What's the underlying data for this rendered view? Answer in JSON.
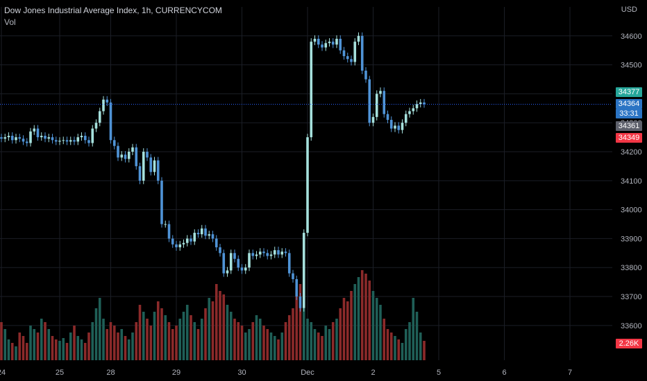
{
  "header": {
    "symbol_title": "Dow Jones Industrial Average Index, 1h, CURRENCYCOM",
    "volume_label": "Vol"
  },
  "axis": {
    "currency_label": "USD"
  },
  "price_labels": {
    "high_label": "34377",
    "last_label": "34364",
    "countdown_label": "33:31",
    "prev_close_label": "34361",
    "low_label": "34349",
    "volume_label": "2.26K"
  },
  "colors": {
    "background": "#000000",
    "up": "#a5e0dc",
    "down": "#4f93d6",
    "vol_up": "#1f5f57",
    "vol_down": "#8b2a2a",
    "grid": "#1b1e26",
    "dotline": "#2962ff"
  },
  "chart_data": {
    "type": "candlestick",
    "title": "Dow Jones Industrial Average Index, 1h, CURRENCYCOM",
    "ylabel": "USD",
    "ylim": [
      33480,
      34700
    ],
    "y_ticks": [
      34600,
      34500,
      34400,
      34300,
      34200,
      34100,
      34000,
      33900,
      33800,
      33700,
      33600
    ],
    "x_ticks": [
      "24",
      "25",
      "28",
      "29",
      "30",
      "Dec",
      "2",
      "5",
      "6",
      "7"
    ],
    "x_tick_index": [
      0,
      16,
      30,
      48,
      66,
      84,
      102,
      120,
      138,
      156
    ],
    "grid": true,
    "current_price": 34364,
    "volume_last": "2.26K",
    "series": [
      {
        "ohlc_close": [
          34245,
          34250,
          34255,
          34240,
          34250,
          34245,
          34235,
          34230,
          34270,
          34280,
          34250,
          34255,
          34245,
          34250,
          34240,
          34235,
          34238,
          34240,
          34235,
          34240,
          34235,
          34250,
          34255,
          34240,
          34230,
          34280,
          34300,
          34340,
          34380,
          34370,
          34240,
          34220,
          34180,
          34190,
          34175,
          34200,
          34215,
          34150,
          34100,
          34200,
          34180,
          34130,
          34170,
          34100,
          33950,
          33950,
          33900,
          33880,
          33870,
          33880,
          33885,
          33900,
          33890,
          33920,
          33915,
          33935,
          33910,
          33915,
          33900,
          33870,
          33850,
          33780,
          33790,
          33850,
          33830,
          33800,
          33790,
          33800,
          33850,
          33840,
          33845,
          33855,
          33850,
          33840,
          33845,
          33860,
          33845,
          33855,
          33850,
          33780,
          33760,
          33700,
          33660,
          33920,
          34250,
          34580,
          34590,
          34570,
          34560,
          34575,
          34580,
          34570,
          34590,
          34550,
          34530,
          34520,
          34510,
          34580,
          34600,
          34480,
          34450,
          34300,
          34320,
          34400,
          34410,
          34330,
          34310,
          34280,
          34290,
          34275,
          34300,
          34330,
          34340,
          34350,
          34365,
          34370,
          34364
        ],
        "ohlc_open": [
          34250,
          34245,
          34250,
          34255,
          34240,
          34250,
          34245,
          34235,
          34230,
          34270,
          34280,
          34250,
          34255,
          34245,
          34250,
          34240,
          34235,
          34238,
          34240,
          34235,
          34240,
          34235,
          34250,
          34255,
          34240,
          34230,
          34280,
          34300,
          34340,
          34380,
          34370,
          34240,
          34220,
          34180,
          34190,
          34175,
          34200,
          34215,
          34150,
          34100,
          34200,
          34180,
          34130,
          34170,
          34100,
          33950,
          33950,
          33900,
          33880,
          33870,
          33880,
          33885,
          33900,
          33890,
          33920,
          33915,
          33935,
          33910,
          33915,
          33900,
          33870,
          33850,
          33780,
          33790,
          33850,
          33830,
          33800,
          33790,
          33800,
          33850,
          33840,
          33845,
          33855,
          33850,
          33840,
          33845,
          33860,
          33845,
          33855,
          33850,
          33780,
          33760,
          33700,
          33660,
          33920,
          34250,
          34580,
          34590,
          34570,
          34560,
          34575,
          34580,
          34570,
          34590,
          34550,
          34530,
          34520,
          34510,
          34580,
          34600,
          34480,
          34450,
          34300,
          34320,
          34400,
          34410,
          34330,
          34310,
          34280,
          34290,
          34275,
          34300,
          34330,
          34340,
          34350,
          34365,
          34370
        ],
        "volume": [
          55,
          45,
          30,
          25,
          20,
          40,
          35,
          25,
          50,
          45,
          40,
          60,
          55,
          45,
          35,
          30,
          28,
          32,
          25,
          40,
          50,
          35,
          30,
          25,
          40,
          55,
          75,
          90,
          60,
          45,
          55,
          50,
          40,
          45,
          35,
          30,
          40,
          55,
          80,
          70,
          60,
          50,
          70,
          85,
          75,
          65,
          55,
          45,
          50,
          60,
          70,
          80,
          65,
          55,
          45,
          60,
          75,
          90,
          85,
          110,
          100,
          95,
          80,
          70,
          60,
          55,
          50,
          40,
          45,
          55,
          65,
          60,
          50,
          45,
          40,
          35,
          30,
          40,
          55,
          65,
          75,
          100,
          110,
          75,
          60,
          55,
          45,
          40,
          35,
          50,
          45,
          55,
          60,
          75,
          90,
          85,
          100,
          110,
          120,
          130,
          125,
          115,
          100,
          90,
          80,
          60,
          45,
          40,
          35,
          30,
          25,
          45,
          55,
          90,
          70,
          40,
          28
        ]
      }
    ]
  }
}
